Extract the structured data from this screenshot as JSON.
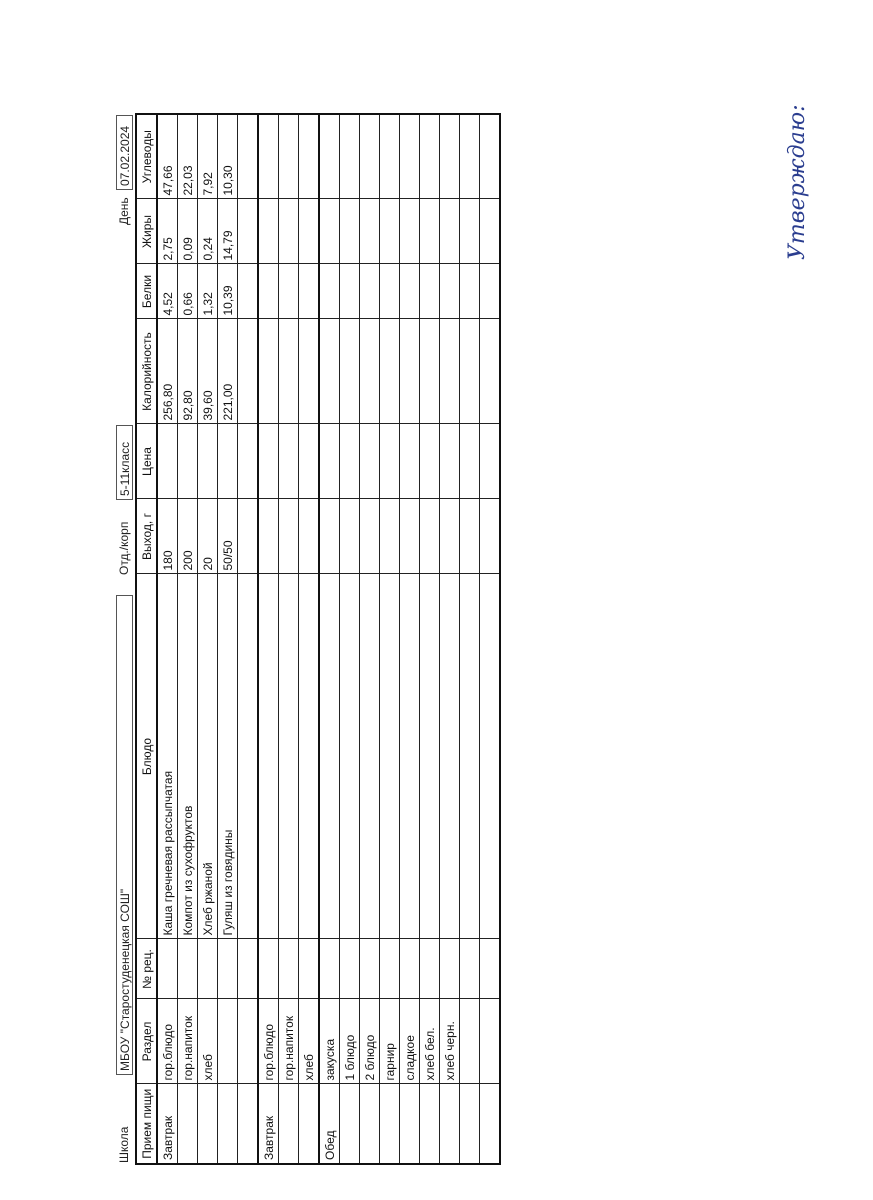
{
  "approval": "Утверждаю:",
  "header": {
    "school_label": "Школа",
    "school": "МБОУ \"Старостуденецкая СОШ\"",
    "dept_label": "Отд./корп",
    "dept": "5-11класс",
    "day_label": "День",
    "day": "07.02.2024"
  },
  "table": {
    "columns": [
      "Прием пищи",
      "Раздел",
      "№ рец.",
      "Блюдо",
      "Выход, г",
      "Цена",
      "Калорийность",
      "Белки",
      "Жиры",
      "Углеводы"
    ],
    "blocks": [
      {
        "meal": "Завтрак",
        "rows": [
          [
            "гор.блюдо",
            null,
            "Каша гречневая рассыпчатая",
            "180",
            null,
            "256,80",
            "4,52",
            "2,75",
            "47,66"
          ],
          [
            "гор.напиток",
            null,
            "Компот из сухофруктов",
            "200",
            null,
            "92,80",
            "0,66",
            "0,09",
            "22,03"
          ],
          [
            "хлеб",
            null,
            "Хлеб ржаной",
            "20",
            null,
            "39,60",
            "1,32",
            "0,24",
            "7,92"
          ],
          [
            null,
            null,
            "Гуляш из говядины",
            "50/50",
            null,
            "221,00",
            "10,39",
            "14,79",
            "10,30"
          ],
          [
            null,
            null,
            null,
            null,
            null,
            null,
            null,
            null,
            null
          ]
        ]
      },
      {
        "meal": "Завтрак",
        "rows": [
          [
            "гор.блюдо",
            null,
            null,
            null,
            null,
            null,
            null,
            null,
            null
          ],
          [
            "гор.напиток",
            null,
            null,
            null,
            null,
            null,
            null,
            null,
            null
          ],
          [
            "хлеб",
            null,
            null,
            null,
            null,
            null,
            null,
            null,
            null
          ]
        ]
      },
      {
        "meal": "Обед",
        "rows": [
          [
            "закуска",
            null,
            null,
            null,
            null,
            null,
            null,
            null,
            null
          ],
          [
            "1 блюдо",
            null,
            null,
            null,
            null,
            null,
            null,
            null,
            null
          ],
          [
            "2 блюдо",
            null,
            null,
            null,
            null,
            null,
            null,
            null,
            null
          ],
          [
            "гарнир",
            null,
            null,
            null,
            null,
            null,
            null,
            null,
            null
          ],
          [
            "сладкое",
            null,
            null,
            null,
            null,
            null,
            null,
            null,
            null
          ],
          [
            "хлеб бел.",
            null,
            null,
            null,
            null,
            null,
            null,
            null,
            null
          ],
          [
            "хлеб черн.",
            null,
            null,
            null,
            null,
            null,
            null,
            null,
            null
          ],
          [
            null,
            null,
            null,
            null,
            null,
            null,
            null,
            null,
            null
          ],
          [
            null,
            null,
            null,
            null,
            null,
            null,
            null,
            null,
            null
          ]
        ]
      }
    ]
  }
}
